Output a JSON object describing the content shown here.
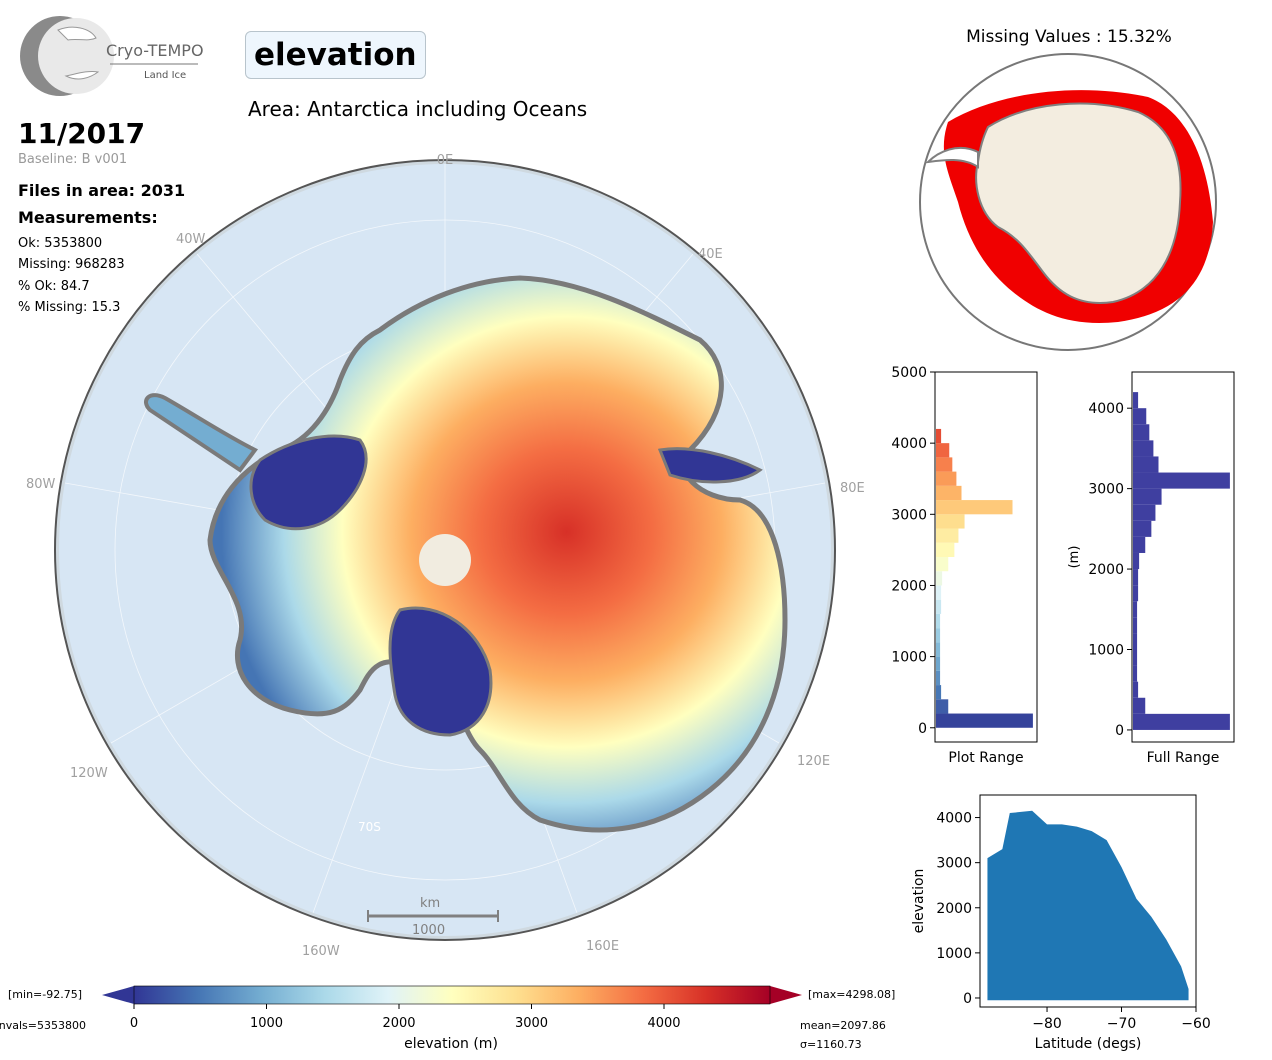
{
  "logo": {
    "name": "Cryo-TEMPO",
    "subtitle": "Land Ice"
  },
  "parameter": "elevation",
  "area_label": "Area: Antarctica including Oceans",
  "date": "11/2017",
  "baseline": "Baseline: B v001",
  "files_in_area": "Files in area: 2031",
  "measurements_heading": "Measurements:",
  "stats": {
    "ok": "Ok: 5353800",
    "missing": "Missing: 968283",
    "pct_ok": "% Ok: 84.7",
    "pct_missing": "% Missing: 15.3"
  },
  "missing_title": "Missing Values : 15.32%",
  "map": {
    "lon_labels": [
      "0E",
      "40E",
      "80E",
      "120E",
      "160E",
      "160W",
      "120W",
      "80W",
      "40W"
    ],
    "lat_label": "70S",
    "scale_unit": "km",
    "scale_value": "1000",
    "colors": {
      "ocean": "#d7e6f4",
      "low": "#313695",
      "high": "#d73027",
      "coast": "#7a7a7a",
      "pole": "#f1ece0"
    }
  },
  "colorbar": {
    "min_label": "[min=-92.75]",
    "max_label": "[max=4298.08]",
    "nvals_label": "nvals=5353800",
    "mean_label": "mean=2097.86",
    "sigma_label": "σ=1160.73",
    "ticks": [
      "0",
      "1000",
      "2000",
      "3000",
      "4000"
    ],
    "xlabel": "elevation (m)",
    "range": [
      0,
      4800
    ],
    "colors": [
      "#313695",
      "#4575b4",
      "#74add1",
      "#abd9e9",
      "#e0f3f8",
      "#ffffbf",
      "#fee090",
      "#fdae61",
      "#f46d43",
      "#d73027",
      "#a50026"
    ]
  },
  "chart_data": [
    {
      "type": "bar",
      "orientation": "horizontal",
      "xlabel": "Plot Range",
      "ylabel": "",
      "ylim": [
        -200,
        5000
      ],
      "yticks": [
        "0",
        "1000",
        "2000",
        "3000",
        "4000",
        "5000"
      ],
      "bins": [
        0,
        200,
        400,
        600,
        800,
        1000,
        1200,
        1400,
        1600,
        1800,
        2000,
        2200,
        2400,
        2600,
        2800,
        3000,
        3200,
        3400,
        3600,
        3800,
        4000
      ],
      "values": [
        0.95,
        0.12,
        0.05,
        0.04,
        0.04,
        0.04,
        0.04,
        0.04,
        0.05,
        0.05,
        0.06,
        0.12,
        0.18,
        0.22,
        0.28,
        0.75,
        0.25,
        0.2,
        0.16,
        0.13,
        0.05
      ]
    },
    {
      "type": "bar",
      "orientation": "horizontal",
      "xlabel": "Full Range",
      "ylabel": "(m)",
      "ylim": [
        -150,
        4450
      ],
      "yticks": [
        "0",
        "1000",
        "2000",
        "3000",
        "4000"
      ],
      "bins": [
        0,
        200,
        400,
        600,
        800,
        1000,
        1200,
        1400,
        1600,
        1800,
        2000,
        2200,
        2400,
        2600,
        2800,
        3000,
        3200,
        3400,
        3600,
        3800,
        4000
      ],
      "values": [
        0.95,
        0.12,
        0.05,
        0.04,
        0.04,
        0.04,
        0.04,
        0.04,
        0.05,
        0.05,
        0.06,
        0.12,
        0.18,
        0.22,
        0.28,
        0.95,
        0.25,
        0.2,
        0.16,
        0.13,
        0.05
      ],
      "color": "#3f3fa0"
    },
    {
      "type": "scatter",
      "xlabel": "Latitude (degs)",
      "ylabel": "elevation",
      "xlim": [
        -89,
        -60
      ],
      "ylim": [
        -200,
        4500
      ],
      "xticks": [
        "−80",
        "−70",
        "−60"
      ],
      "yticks": [
        "0",
        "1000",
        "2000",
        "3000",
        "4000"
      ],
      "color": "#1f77b4",
      "upper_envelope": [
        [
          -88,
          3100
        ],
        [
          -86,
          3300
        ],
        [
          -85,
          4100
        ],
        [
          -82,
          4150
        ],
        [
          -80,
          3850
        ],
        [
          -78,
          3850
        ],
        [
          -76,
          3800
        ],
        [
          -74,
          3700
        ],
        [
          -72,
          3500
        ],
        [
          -70,
          2900
        ],
        [
          -68,
          2200
        ],
        [
          -66,
          1800
        ],
        [
          -64,
          1300
        ],
        [
          -62,
          700
        ],
        [
          -61,
          200
        ]
      ],
      "lower_bound": -50
    }
  ]
}
